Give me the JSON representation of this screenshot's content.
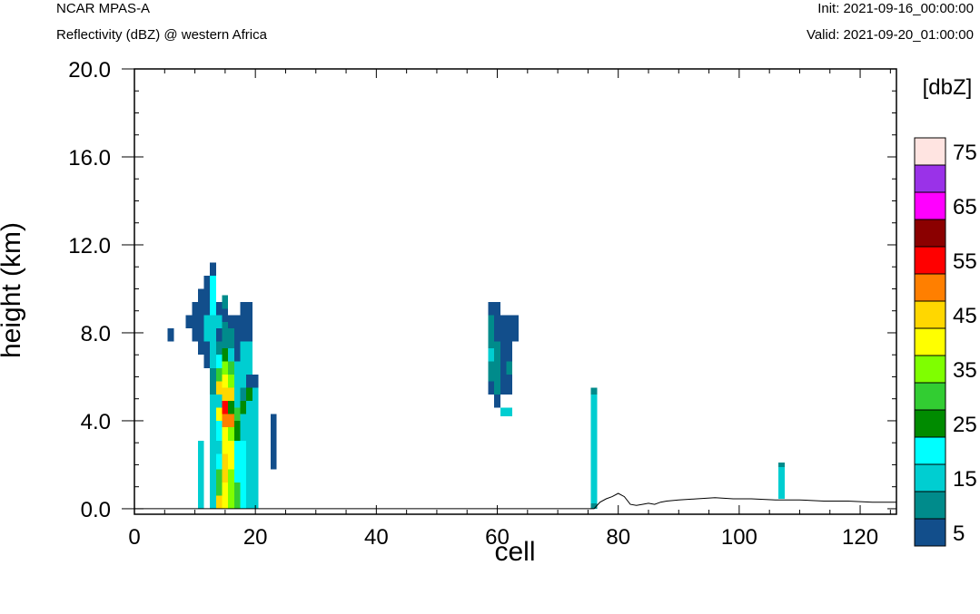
{
  "header": {
    "model": "NCAR MPAS-A",
    "field": "Reflectivity (dBZ) @ western Africa",
    "init": "Init: 2021-09-16_00:00:00",
    "valid": "Valid: 2021-09-20_01:00:00"
  },
  "chart_data": {
    "type": "heatmap",
    "title": "Reflectivity (dBZ) @ western Africa",
    "xlabel": "cell",
    "ylabel": "height (km)",
    "xlim": [
      0,
      126
    ],
    "ylim": [
      -0.25,
      20.0
    ],
    "x_ticks": [
      0,
      20,
      40,
      60,
      80,
      100,
      120
    ],
    "x_tick_labels": [
      "0",
      "20",
      "40",
      "60",
      "80",
      "100",
      "120"
    ],
    "y_ticks": [
      0,
      4,
      8,
      12,
      16,
      20
    ],
    "y_tick_labels": [
      "0.0",
      "4.0",
      "8.0",
      "12.0",
      "16.0",
      "20.0"
    ],
    "cell_height_km": 0.3,
    "colorbar": {
      "title": "[dbZ]",
      "levels": [
        5,
        10,
        15,
        20,
        25,
        30,
        35,
        40,
        45,
        50,
        55,
        60,
        65,
        70,
        75,
        80
      ],
      "labels": [
        "5",
        "15",
        "25",
        "35",
        "45",
        "55",
        "65",
        "75"
      ],
      "colors": [
        "#124e8b",
        "#008b8b",
        "#00ced1",
        "#00ffff",
        "#008b00",
        "#32cd32",
        "#7fff00",
        "#ffff00",
        "#ffd700",
        "#ff7f00",
        "#ff0000",
        "#8b0000",
        "#ff00ff",
        "#9a32e8",
        "#ffe4e1"
      ]
    },
    "columns": [
      {
        "x": 6,
        "ranges": [
          [
            7.6,
            8.2,
            0
          ]
        ]
      },
      {
        "x": 9,
        "ranges": [
          [
            8.2,
            8.8,
            0
          ]
        ]
      },
      {
        "x": 10,
        "ranges": [
          [
            7.6,
            8.8,
            0
          ],
          [
            8.8,
            9.4,
            0
          ]
        ]
      },
      {
        "x": 11,
        "ranges": [
          [
            0,
            3.1,
            2
          ],
          [
            7.0,
            8.2,
            0
          ],
          [
            8.2,
            9.4,
            0
          ],
          [
            9.4,
            10.0,
            0
          ]
        ]
      },
      {
        "x": 12,
        "ranges": [
          [
            6.4,
            7.6,
            0
          ],
          [
            7.6,
            8.8,
            2
          ],
          [
            8.8,
            10.0,
            0
          ],
          [
            10.0,
            10.6,
            0
          ]
        ]
      },
      {
        "x": 13,
        "ranges": [
          [
            0,
            3.1,
            2
          ],
          [
            3.1,
            5.2,
            2
          ],
          [
            5.2,
            6.4,
            1
          ],
          [
            6.4,
            8.8,
            2
          ],
          [
            8.8,
            10.6,
            3
          ],
          [
            10.6,
            11.2,
            0
          ]
        ]
      },
      {
        "x": 14,
        "ranges": [
          [
            0,
            0.6,
            8
          ],
          [
            0.6,
            1.8,
            5
          ],
          [
            1.8,
            2.5,
            3
          ],
          [
            2.5,
            3.1,
            2
          ],
          [
            3.1,
            4.0,
            3
          ],
          [
            4.0,
            4.6,
            7
          ],
          [
            4.6,
            5.2,
            2
          ],
          [
            5.2,
            5.8,
            8
          ],
          [
            5.8,
            6.4,
            5
          ],
          [
            6.4,
            7.0,
            3
          ],
          [
            7.0,
            7.6,
            1
          ],
          [
            7.6,
            8.2,
            0
          ],
          [
            8.2,
            8.8,
            2
          ],
          [
            8.8,
            9.4,
            0
          ]
        ]
      },
      {
        "x": 15,
        "ranges": [
          [
            0,
            1.2,
            7
          ],
          [
            1.2,
            2.5,
            8
          ],
          [
            2.5,
            3.7,
            7
          ],
          [
            3.7,
            4.3,
            9
          ],
          [
            4.3,
            4.9,
            10
          ],
          [
            4.9,
            5.5,
            8
          ],
          [
            5.5,
            6.1,
            7
          ],
          [
            6.1,
            6.7,
            6
          ],
          [
            6.7,
            7.3,
            4
          ],
          [
            7.3,
            8.5,
            1
          ],
          [
            8.5,
            9.1,
            0
          ],
          [
            9.1,
            9.7,
            1
          ]
        ]
      },
      {
        "x": 16,
        "ranges": [
          [
            0,
            1.8,
            6
          ],
          [
            1.8,
            3.1,
            7
          ],
          [
            3.1,
            3.7,
            6
          ],
          [
            3.7,
            4.3,
            9
          ],
          [
            4.3,
            4.9,
            4
          ],
          [
            4.9,
            5.5,
            8
          ],
          [
            5.5,
            6.1,
            6
          ],
          [
            6.1,
            6.7,
            5
          ],
          [
            6.7,
            7.3,
            2
          ],
          [
            7.3,
            8.2,
            1
          ],
          [
            8.2,
            8.8,
            0
          ]
        ]
      },
      {
        "x": 17,
        "ranges": [
          [
            0,
            1.2,
            5
          ],
          [
            1.2,
            3.1,
            3
          ],
          [
            3.1,
            4.0,
            4
          ],
          [
            4.0,
            4.6,
            5
          ],
          [
            4.6,
            5.2,
            2
          ],
          [
            5.2,
            6.7,
            2
          ],
          [
            6.7,
            7.6,
            0
          ],
          [
            7.6,
            8.8,
            0
          ]
        ]
      },
      {
        "x": 18,
        "ranges": [
          [
            0,
            3.1,
            3
          ],
          [
            3.1,
            4.3,
            2
          ],
          [
            4.3,
            4.9,
            4
          ],
          [
            4.9,
            5.5,
            1
          ],
          [
            5.5,
            7.6,
            2
          ],
          [
            7.6,
            8.8,
            0
          ],
          [
            8.8,
            9.4,
            0
          ]
        ]
      },
      {
        "x": 19,
        "ranges": [
          [
            0,
            3.1,
            2
          ],
          [
            3.1,
            4.9,
            2
          ],
          [
            4.9,
            5.5,
            4
          ],
          [
            5.5,
            6.1,
            0
          ],
          [
            6.1,
            7.6,
            2
          ],
          [
            7.6,
            9.4,
            0
          ]
        ]
      },
      {
        "x": 20,
        "ranges": [
          [
            0,
            3.1,
            2
          ],
          [
            3.1,
            4.3,
            2
          ],
          [
            4.3,
            5.5,
            2
          ],
          [
            5.5,
            6.1,
            0
          ]
        ]
      },
      {
        "x": 23,
        "ranges": [
          [
            1.8,
            4.3,
            0
          ]
        ]
      },
      {
        "x": 59,
        "ranges": [
          [
            5.2,
            5.8,
            0
          ],
          [
            5.8,
            6.7,
            1
          ],
          [
            6.7,
            7.3,
            2
          ],
          [
            7.3,
            8.2,
            1
          ],
          [
            8.2,
            8.8,
            1
          ],
          [
            8.8,
            9.4,
            0
          ]
        ]
      },
      {
        "x": 60,
        "ranges": [
          [
            4.6,
            5.2,
            0
          ],
          [
            5.2,
            6.4,
            1
          ],
          [
            6.4,
            7.6,
            1
          ],
          [
            7.6,
            8.8,
            0
          ],
          [
            8.8,
            9.4,
            0
          ]
        ]
      },
      {
        "x": 61,
        "ranges": [
          [
            4.2,
            4.6,
            2
          ],
          [
            5.2,
            6.1,
            0
          ],
          [
            6.1,
            7.9,
            0
          ],
          [
            7.9,
            8.8,
            0
          ]
        ]
      },
      {
        "x": 62,
        "ranges": [
          [
            4.2,
            4.6,
            2
          ],
          [
            5.2,
            6.1,
            0
          ],
          [
            6.1,
            6.7,
            1
          ],
          [
            6.7,
            8.8,
            0
          ]
        ]
      },
      {
        "x": 63,
        "ranges": [
          [
            7.6,
            8.8,
            0
          ]
        ]
      },
      {
        "x": 76,
        "ranges": [
          [
            0,
            0.25,
            1
          ],
          [
            0.25,
            5.2,
            2
          ],
          [
            5.2,
            5.5,
            1
          ]
        ]
      },
      {
        "x": 107,
        "ranges": [
          [
            0.45,
            1.9,
            2
          ],
          [
            1.9,
            2.1,
            1
          ]
        ]
      }
    ],
    "terrain": [
      [
        0,
        0
      ],
      [
        76,
        0
      ],
      [
        77,
        0.3
      ],
      [
        78,
        0.45
      ],
      [
        79,
        0.55
      ],
      [
        80,
        0.7
      ],
      [
        81,
        0.55
      ],
      [
        82,
        0.2
      ],
      [
        83,
        0.15
      ],
      [
        84,
        0.2
      ],
      [
        85,
        0.25
      ],
      [
        86,
        0.2
      ],
      [
        87,
        0.3
      ],
      [
        88,
        0.35
      ],
      [
        90,
        0.4
      ],
      [
        93,
        0.45
      ],
      [
        96,
        0.5
      ],
      [
        99,
        0.45
      ],
      [
        102,
        0.45
      ],
      [
        106,
        0.4
      ],
      [
        110,
        0.4
      ],
      [
        114,
        0.35
      ],
      [
        118,
        0.35
      ],
      [
        122,
        0.3
      ],
      [
        126,
        0.3
      ]
    ]
  }
}
